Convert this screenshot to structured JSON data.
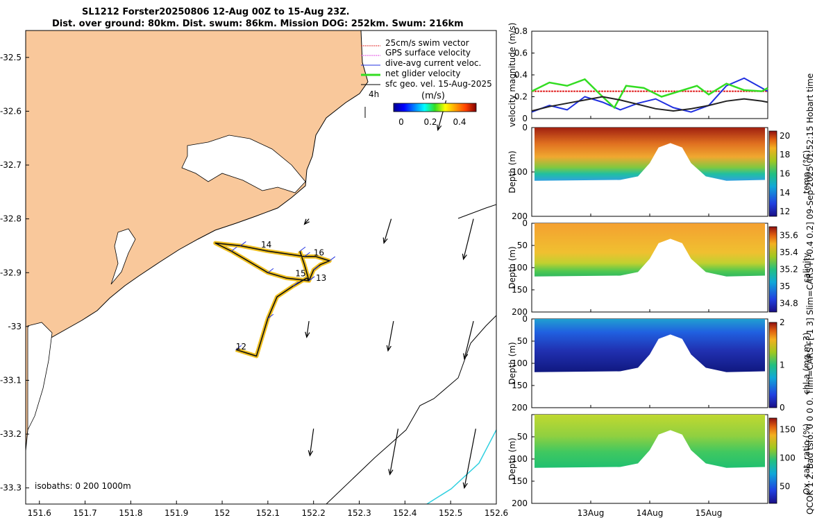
{
  "header": {
    "title_line1": "SL1212 Forster20250806 12-Aug 00Z to 15-Aug 23Z.",
    "title_line2": "Dist. over ground: 80km. Dist. swum: 86km. Mission DOG: 252km. Swum: 216km"
  },
  "side_caption": "QCOK 1  2. Bad tsfo: 0  0  0  0. Tlim=CARS+[-1 3] Slim=CARS+[-0.4 0.2] 09-Sep-2025 01:52:15 Hobart time",
  "colors": {
    "land": "#f9c89b",
    "track_outer": "#f0c020",
    "track_inner": "#111111",
    "swim_vector": "#e02020",
    "gps_velocity": "#e040e0",
    "dive_avg": "#2030e0",
    "net_velocity": "#33dd22",
    "isobath_1000": "#30d0e0"
  },
  "chart_data": [
    {
      "type": "map",
      "title": "Glider track map",
      "xlim": [
        151.57,
        152.6
      ],
      "ylim": [
        -33.33,
        -32.45
      ],
      "x_ticks": [
        "151.6",
        "151.7",
        "151.8",
        "151.9",
        "152",
        "152.1",
        "152.2",
        "152.3",
        "152.4",
        "152.5",
        "152.6"
      ],
      "y_ticks": [
        "-32.5",
        "-32.6",
        "-32.7",
        "-32.8",
        "-32.9",
        "-33",
        "-33.1",
        "-33.2",
        "-33.3"
      ],
      "legend": [
        {
          "label": "25cm/s swim vector",
          "color": "#e02020"
        },
        {
          "label": "GPS surface velocity",
          "color": "#e040e0"
        },
        {
          "label": "dive-avg current veloc.",
          "color": "#2030e0"
        },
        {
          "label": "net glider velocity",
          "color": "#33dd22"
        },
        {
          "label": "sfc geo. vel. 15-Aug-2025",
          "color": "#000000"
        }
      ],
      "vector_scale_label": "4h",
      "colorbar": {
        "label": "(m/s)",
        "ticks": [
          "0",
          "0.2",
          "0.4"
        ],
        "range": [
          0,
          0.5
        ]
      },
      "isobath_label": "isobaths: 0   200  1000m",
      "day_labels": [
        {
          "text": "12",
          "lon": 152.03,
          "lat": -33.043
        },
        {
          "text": "13",
          "lon": 152.205,
          "lat": -32.915
        },
        {
          "text": "14",
          "lon": 152.085,
          "lat": -32.853
        },
        {
          "text": "15",
          "lon": 152.16,
          "lat": -32.907
        },
        {
          "text": "16",
          "lon": 152.2,
          "lat": -32.868
        }
      ],
      "track": [
        [
          152.03,
          -33.043
        ],
        [
          152.075,
          -33.055
        ],
        [
          152.1,
          -32.985
        ],
        [
          152.12,
          -32.945
        ],
        [
          152.155,
          -32.925
        ],
        [
          152.185,
          -32.91
        ],
        [
          152.19,
          -32.915
        ],
        [
          152.195,
          -32.905
        ],
        [
          152.2,
          -32.895
        ],
        [
          152.215,
          -32.885
        ],
        [
          152.235,
          -32.878
        ],
        [
          152.205,
          -32.87
        ],
        [
          152.18,
          -32.87
        ],
        [
          152.1,
          -32.86
        ],
        [
          152.04,
          -32.85
        ],
        [
          151.985,
          -32.845
        ],
        [
          152.02,
          -32.86
        ],
        [
          152.06,
          -32.88
        ],
        [
          152.1,
          -32.9
        ],
        [
          152.14,
          -32.91
        ],
        [
          152.19,
          -32.915
        ],
        [
          152.18,
          -32.885
        ],
        [
          152.17,
          -32.86
        ]
      ],
      "current_arrows": [
        {
          "lon": 152.49,
          "lat": -32.58,
          "u": -0.018,
          "v": -0.055
        },
        {
          "lon": 152.37,
          "lat": -32.8,
          "u": -0.016,
          "v": -0.045
        },
        {
          "lon": 152.55,
          "lat": -32.8,
          "u": -0.022,
          "v": -0.075
        },
        {
          "lon": 152.19,
          "lat": -32.8,
          "u": -0.01,
          "v": -0.01
        },
        {
          "lon": 152.19,
          "lat": -32.99,
          "u": -0.005,
          "v": -0.03
        },
        {
          "lon": 152.375,
          "lat": -32.99,
          "u": -0.012,
          "v": -0.055
        },
        {
          "lon": 152.55,
          "lat": -32.99,
          "u": -0.02,
          "v": -0.07
        },
        {
          "lon": 152.2,
          "lat": -33.19,
          "u": -0.008,
          "v": -0.05
        },
        {
          "lon": 152.385,
          "lat": -33.19,
          "u": -0.018,
          "v": -0.085
        },
        {
          "lon": 152.555,
          "lat": -33.19,
          "u": -0.025,
          "v": -0.11
        }
      ]
    },
    {
      "type": "line",
      "title": "Velocity magnitude",
      "ylabel": "velocity magnitude (m/s)",
      "ylim": [
        0,
        0.8
      ],
      "y_ticks": [
        "0",
        "0.2",
        "0.4",
        "0.6",
        "0.8"
      ],
      "xlim_days": [
        12.0,
        16.0
      ],
      "x_ticks": [
        "13Aug",
        "14Aug",
        "15Aug"
      ],
      "series": [
        {
          "name": "swim vector",
          "color": "#e02020",
          "x": [
            12.0,
            16.0
          ],
          "values": [
            0.25,
            0.25
          ]
        },
        {
          "name": "dive-avg current",
          "color": "#2030e0",
          "x": [
            12.0,
            12.3,
            12.6,
            12.9,
            13.2,
            13.5,
            13.8,
            14.1,
            14.4,
            14.7,
            15.0,
            15.3,
            15.6,
            15.9,
            16.0
          ],
          "values": [
            0.06,
            0.12,
            0.08,
            0.2,
            0.15,
            0.08,
            0.14,
            0.18,
            0.1,
            0.06,
            0.12,
            0.3,
            0.37,
            0.28,
            0.25
          ]
        },
        {
          "name": "net glider velocity",
          "color": "#33dd22",
          "x": [
            12.0,
            12.3,
            12.6,
            12.9,
            13.2,
            13.4,
            13.6,
            13.9,
            14.2,
            14.5,
            14.8,
            15.0,
            15.3,
            15.6,
            15.9,
            16.0
          ],
          "values": [
            0.25,
            0.33,
            0.3,
            0.36,
            0.2,
            0.1,
            0.3,
            0.28,
            0.2,
            0.25,
            0.3,
            0.22,
            0.32,
            0.26,
            0.25,
            0.28
          ]
        },
        {
          "name": "sfc geo. vel.",
          "color": "#222222",
          "x": [
            12.0,
            12.3,
            12.6,
            12.9,
            13.2,
            13.5,
            13.8,
            14.1,
            14.4,
            14.7,
            15.0,
            15.3,
            15.6,
            15.9,
            16.0
          ],
          "values": [
            0.07,
            0.11,
            0.14,
            0.17,
            0.2,
            0.17,
            0.13,
            0.09,
            0.07,
            0.09,
            0.12,
            0.16,
            0.18,
            0.16,
            0.15
          ]
        }
      ]
    },
    {
      "type": "heatmap",
      "variable": "temp",
      "ylabel": "Depth (m)",
      "cbar_label": "temp. (°C)",
      "ylim": [
        0,
        200
      ],
      "y_ticks": [
        "0",
        "100",
        "200"
      ],
      "clim": [
        11.5,
        20.5
      ],
      "cbar_ticks": [
        "12",
        "14",
        "16",
        "18",
        "20"
      ]
    },
    {
      "type": "heatmap",
      "variable": "salinity",
      "ylabel": "Depth (m)",
      "cbar_label": "salinity",
      "ylim": [
        0,
        200
      ],
      "y_ticks": [
        "0",
        "50",
        "100",
        "150",
        "200"
      ],
      "clim": [
        34.7,
        35.7
      ],
      "cbar_ticks": [
        "34.8",
        "35",
        "35.2",
        "35.4",
        "35.6"
      ]
    },
    {
      "type": "heatmap",
      "variable": "chl-a",
      "ylabel": "Depth (m)",
      "cbar_label": "chl-a (mg m-3)",
      "ylim": [
        0,
        200
      ],
      "y_ticks": [
        "0",
        "50",
        "100",
        "150",
        "200"
      ],
      "clim": [
        0,
        2
      ],
      "cbar_ticks": [
        "0",
        "1",
        "2"
      ]
    },
    {
      "type": "heatmap",
      "variable": "oxygen",
      "ylabel": "Depth (m)",
      "cbar_label": "Ox. sat. ratio (%)",
      "ylim": [
        0,
        200
      ],
      "y_ticks": [
        "50",
        "100",
        "150",
        "200"
      ],
      "clim": [
        20,
        170
      ],
      "cbar_ticks": [
        "50",
        "100",
        "150"
      ],
      "x_ticks": [
        "13Aug",
        "14Aug",
        "15Aug"
      ]
    }
  ]
}
